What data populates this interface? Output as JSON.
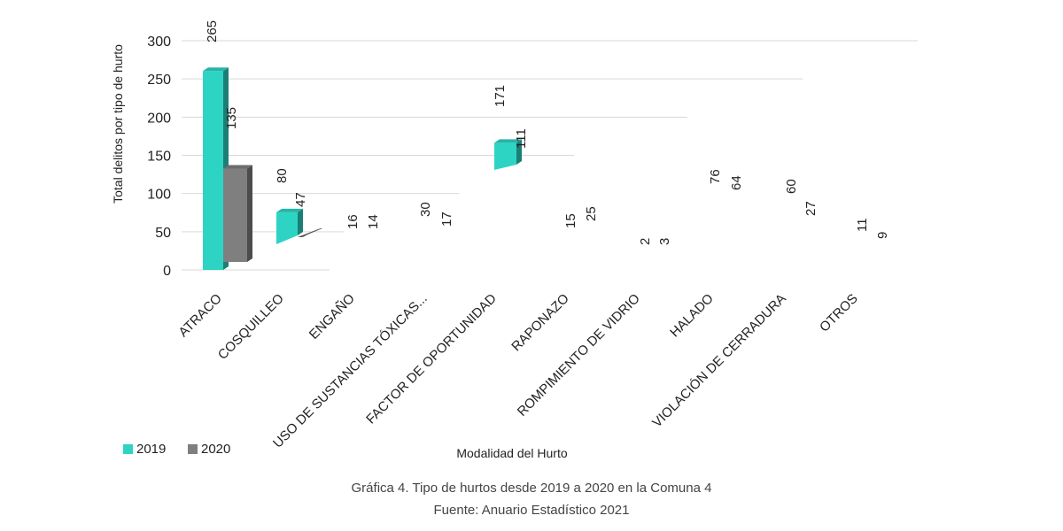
{
  "chart_data": {
    "type": "bar",
    "categories": [
      "ATRACO",
      "COSQUILLEO",
      "ENGAÑO",
      "USO DE SUSTANCIAS TÓXICAS...",
      "FACTOR DE OPORTUNIDAD",
      "RAPONAZO",
      "ROMPIMIENTO DE VIDRIO",
      "HALADO",
      "VIOLACIÓN DE CERRADURA",
      "OTROS"
    ],
    "series": [
      {
        "name": "2019",
        "values": [
          265,
          80,
          16,
          30,
          171,
          15,
          2,
          76,
          60,
          11
        ],
        "color": "#2DD4C4"
      },
      {
        "name": "2020",
        "values": [
          135,
          47,
          14,
          17,
          111,
          25,
          3,
          64,
          27,
          9
        ],
        "color": "#7F7F7F"
      }
    ],
    "ylim": [
      0,
      300
    ],
    "yticks": [
      0,
      50,
      100,
      150,
      200,
      250,
      300
    ],
    "ylabel": "Total delitos por tipo de hurto",
    "xlabel": "Modalidad del Hurto",
    "grid": true,
    "legend": "bottom-left"
  },
  "caption": {
    "line1": "Gráfica 4. Tipo de hurtos desde 2019 a 2020 en la Comuna 4",
    "line2": "Fuente: Anuario Estadístico 2021"
  }
}
